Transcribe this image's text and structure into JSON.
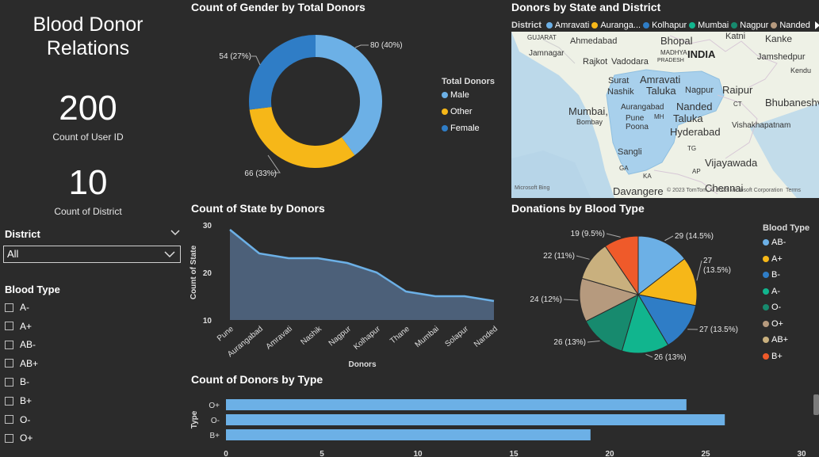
{
  "report": {
    "title_line1": "Blood Donor",
    "title_line2": "Relations",
    "kpi_donors": {
      "value": "200",
      "label": "Count of User ID"
    },
    "kpi_district": {
      "value": "10",
      "label": "Count of District"
    }
  },
  "slicers": {
    "district": {
      "title": "District",
      "selected": "All"
    },
    "blood_type": {
      "title": "Blood Type",
      "options": [
        "A-",
        "A+",
        "AB-",
        "AB+",
        "B-",
        "B+",
        "O-",
        "O+"
      ]
    }
  },
  "gender_chart": {
    "title": "Count of Gender by Total Donors",
    "legend_title": "Total Donors",
    "chart_data": {
      "type": "pie",
      "categories": [
        "Male",
        "Other",
        "Female"
      ],
      "values": [
        80,
        66,
        54
      ],
      "labels": [
        "80 (40%)",
        "66 (33%)",
        "54 (27%)"
      ],
      "colors": [
        "#6cb0e6",
        "#f6b718",
        "#2f7dc6"
      ]
    }
  },
  "map": {
    "title": "Donors by State and District",
    "legend_title": "District",
    "legend_items": [
      "Amravati",
      "Auranga...",
      "Kolhapur",
      "Mumbai",
      "Nagpur",
      "Nanded"
    ],
    "legend_colors": [
      "#6cb0e6",
      "#f6b718",
      "#2f7dc6",
      "#11b58e",
      "#178a6e",
      "#b69a7e"
    ],
    "places": {
      "gujarat": "GUJARAT",
      "ahmedabad": "Ahmedabad",
      "bhopal": "Bhopal",
      "katni": "Katni",
      "kanke": "Kanke",
      "jamnagar": "Jamnagar",
      "madhya": "MADHYA",
      "pradesh": "PRADESH",
      "india": "INDIA",
      "rajkot": "Rajkot",
      "vadodara": "Vadodara",
      "jamshedpur": "Jamshedpur",
      "surat": "Surat",
      "amravati": "Amravati",
      "kendu": "Kendu",
      "nashik": "Nashik",
      "taluka1": "Taluka",
      "nagpur": "Nagpur",
      "raipur": "Raipur",
      "mumbai": "Mumbai,",
      "bombay": "Bombay",
      "aurangabad": "Aurangabad",
      "nanded": "Nanded",
      "ct": "CT",
      "bhubaneshwar": "Bhubaneshv",
      "pune": "Pune",
      "poona": "Poona",
      "mh": "MH",
      "taluka2": "Taluka",
      "hyderabad": "Hyderabad",
      "vishakhapatnam": "Vishakhapatnam",
      "tg": "TG",
      "sangli": "Sangli",
      "goa": "GA",
      "ap": "AP",
      "vijayawada": "Vijayawada",
      "ka": "KA",
      "davangere": "Davangere",
      "chennai": "Chennai",
      "bing": "Microsoft Bing",
      "copyright": "© 2023 TomTom, © 2023 Microsoft Corporation",
      "terms": "Terms"
    }
  },
  "state_chart": {
    "title": "Count of State by Donors",
    "chart_data": {
      "type": "area",
      "x": [
        "Pune",
        "Aurangabad",
        "Amravati",
        "Nashik",
        "Nagpur",
        "Kolhapur",
        "Thane",
        "Mumbai",
        "Solapur",
        "Nanded"
      ],
      "values": [
        29,
        24,
        23,
        23,
        22,
        20,
        16,
        15,
        15,
        14
      ],
      "xlabel": "Donors",
      "ylabel": "Count of State",
      "ylim": [
        10,
        30
      ],
      "yticks": [
        "10",
        "20",
        "30"
      ],
      "color": "#6cb0e6",
      "fill": "#4c6079"
    }
  },
  "bloodtype_chart": {
    "title": "Donations by Blood Type",
    "legend_title": "Blood Type",
    "chart_data": {
      "type": "pie",
      "categories": [
        "AB-",
        "A+",
        "B-",
        "A-",
        "O-",
        "O+",
        "AB+",
        "B+"
      ],
      "values": [
        29,
        27,
        27,
        26,
        26,
        24,
        22,
        19
      ],
      "labels": [
        "29 (14.5%)",
        "27 (13.5%)",
        "27 (13.5%)",
        "26 (13%)",
        "26 (13%)",
        "24 (12%)",
        "22 (11%)",
        "19 (9.5%)"
      ],
      "label_line1": [
        "29 (14.5%)",
        "27",
        "27 (13.5%)",
        "26 (13%)",
        "26 (13%)",
        "24 (12%)",
        "22 (11%)",
        "19 (9.5%)"
      ],
      "label_line2": [
        "",
        "(13.5%)",
        "",
        "",
        "",
        "",
        "",
        ""
      ],
      "colors": [
        "#6cb0e6",
        "#f6b718",
        "#2f7dc6",
        "#11b58e",
        "#178a6e",
        "#b69a7e",
        "#c9b07e",
        "#ef5a2a"
      ]
    }
  },
  "type_chart": {
    "title": "Count of Donors by Type",
    "chart_data": {
      "type": "bar",
      "categories": [
        "O+",
        "O-",
        "B+"
      ],
      "values": [
        24,
        26,
        19
      ],
      "ylabel": "Type",
      "xlim": [
        0,
        30
      ],
      "xticks": [
        "0",
        "5",
        "10",
        "15",
        "20",
        "25",
        "30"
      ],
      "color": "#6cb0e6"
    }
  }
}
